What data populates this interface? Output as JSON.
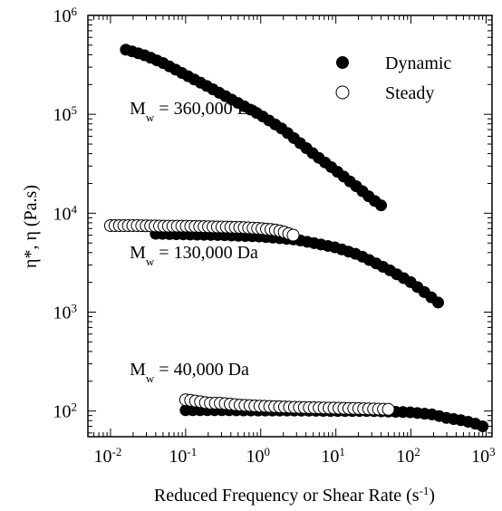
{
  "chart_data": {
    "type": "scatter",
    "xscale": "log",
    "yscale": "log",
    "xlim": [
      0.005,
      1200
    ],
    "ylim": [
      55,
      1000000
    ],
    "xlabel": {
      "main": "Reduced Frequency or Shear Rate (s",
      "sup": "-1",
      "tail": ")"
    },
    "ylabel": "η*, η (Pa.s)",
    "x_ticks": [
      {
        "base": "10",
        "exp": "-2",
        "value": 0.01
      },
      {
        "base": "10",
        "exp": "-1",
        "value": 0.1
      },
      {
        "base": "10",
        "exp": "0",
        "value": 1
      },
      {
        "base": "10",
        "exp": "1",
        "value": 10
      },
      {
        "base": "10",
        "exp": "2",
        "value": 100
      },
      {
        "base": "10",
        "exp": "3",
        "value": 1000
      }
    ],
    "y_ticks": [
      {
        "base": "10",
        "exp": "2",
        "value": 100
      },
      {
        "base": "10",
        "exp": "3",
        "value": 1000
      },
      {
        "base": "10",
        "exp": "4",
        "value": 10000
      },
      {
        "base": "10",
        "exp": "5",
        "value": 100000
      },
      {
        "base": "10",
        "exp": "6",
        "value": 1000000
      }
    ],
    "legend": {
      "position": "top-right",
      "entries": [
        {
          "label": "Dynamic",
          "marker": "filled-circle"
        },
        {
          "label": "Steady",
          "marker": "open-circle"
        }
      ]
    },
    "annotations": [
      {
        "text_main": "M",
        "text_sub": "w",
        "text_rest": " = 360,000 Da",
        "x": 0.018,
        "y": 100000
      },
      {
        "text_main": "M",
        "text_sub": "w",
        "text_rest": " = 130,000 Da",
        "x": 0.018,
        "y": 3500
      },
      {
        "text_main": "M",
        "text_sub": "w",
        "text_rest": " = 40,000 Da",
        "x": 0.018,
        "y": 230
      }
    ],
    "series": [
      {
        "marker": "filled",
        "x": [
          0.016,
          0.02,
          0.03,
          0.05,
          0.1,
          0.2,
          0.5,
          1,
          2,
          5,
          10,
          20,
          30,
          40
        ],
        "y": [
          450000,
          430000,
          390000,
          330000,
          250000,
          190000,
          130000,
          98000,
          70000,
          40000,
          27000,
          18000,
          14000,
          12000
        ]
      },
      {
        "marker": "filled",
        "x": [
          0.04,
          0.1,
          0.3,
          1,
          3,
          10,
          20,
          50,
          100,
          150,
          230
        ],
        "y": [
          6200,
          6100,
          6000,
          5800,
          5400,
          4500,
          3800,
          2700,
          2000,
          1600,
          1250
        ]
      },
      {
        "marker": "filled",
        "x": [
          0.1,
          0.3,
          1,
          3,
          10,
          30,
          100,
          200,
          300,
          500,
          700,
          900
        ],
        "y": [
          102,
          102,
          101,
          101,
          100,
          100,
          97,
          92,
          85,
          80,
          75,
          70
        ]
      },
      {
        "marker": "open",
        "x": [
          0.01,
          0.02,
          0.05,
          0.1,
          0.2,
          0.5,
          1,
          1.5,
          2,
          2.7
        ],
        "y": [
          7500,
          7500,
          7400,
          7400,
          7300,
          7200,
          7000,
          6800,
          6500,
          6000
        ]
      },
      {
        "marker": "open",
        "x": [
          0.1,
          0.15,
          0.2,
          0.3,
          0.5,
          1,
          2,
          5,
          10,
          20,
          30,
          50
        ],
        "y": [
          130,
          125,
          120,
          120,
          115,
          112,
          110,
          108,
          107,
          106,
          105,
          104
        ]
      }
    ]
  }
}
